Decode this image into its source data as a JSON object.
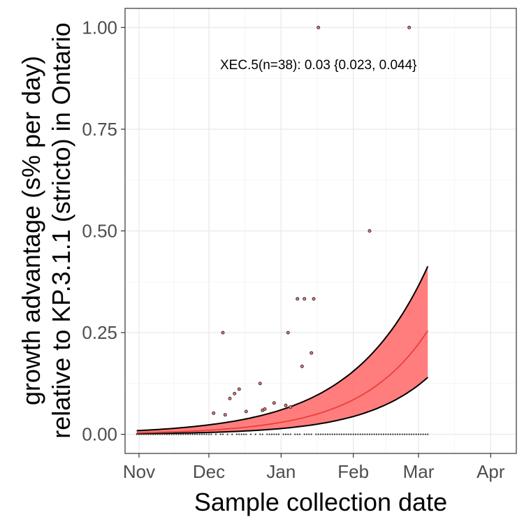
{
  "chart_data": {
    "type": "scatter",
    "title": "",
    "xlabel": "Sample collection date",
    "ylabel_lines": [
      "growth advantage (s% per day)",
      "relative to KP.3.1.1 (stricto) in Ontario"
    ],
    "x_domain": [
      "2024-10-26",
      "2025-04-12"
    ],
    "ylim": [
      -0.047,
      1.047
    ],
    "x_ticks": [
      {
        "label": "Nov",
        "date": "2024-11-01"
      },
      {
        "label": "Dec",
        "date": "2024-12-01"
      },
      {
        "label": "Jan",
        "date": "2025-01-01"
      },
      {
        "label": "Feb",
        "date": "2025-02-01"
      },
      {
        "label": "Mar",
        "date": "2025-03-01"
      },
      {
        "label": "Apr",
        "date": "2025-04-01"
      }
    ],
    "y_ticks": [
      0.0,
      0.25,
      0.5,
      0.75,
      1.0
    ],
    "y_tick_labels": [
      "0.00",
      "0.25",
      "0.50",
      "0.75",
      "1.00"
    ],
    "grid": true,
    "annotation": "XEC.5(n=38): 0.03 {0.023, 0.044}",
    "colors": {
      "fit": "#f8766d",
      "band": "#ff6666",
      "bound": "#000000",
      "point_edge": "#333333",
      "point_fill": "#f8766d"
    },
    "points": [
      {
        "x": "2024-12-03",
        "y": 0.052
      },
      {
        "x": "2024-12-08",
        "y": 0.048
      },
      {
        "x": "2024-12-07",
        "y": 0.25
      },
      {
        "x": "2024-12-10",
        "y": 0.088
      },
      {
        "x": "2024-12-12",
        "y": 0.1
      },
      {
        "x": "2024-12-14",
        "y": 0.111
      },
      {
        "x": "2024-12-17",
        "y": 0.056
      },
      {
        "x": "2024-12-23",
        "y": 0.125
      },
      {
        "x": "2024-12-24",
        "y": 0.059
      },
      {
        "x": "2024-12-25",
        "y": 0.062
      },
      {
        "x": "2024-12-29",
        "y": 0.077
      },
      {
        "x": "2025-01-03",
        "y": 0.071
      },
      {
        "x": "2025-01-04",
        "y": 0.25
      },
      {
        "x": "2025-01-05",
        "y": 0.067
      },
      {
        "x": "2025-01-08",
        "y": 0.333
      },
      {
        "x": "2025-01-10",
        "y": 0.167
      },
      {
        "x": "2025-01-11",
        "y": 0.333
      },
      {
        "x": "2025-01-14",
        "y": 0.2
      },
      {
        "x": "2025-01-15",
        "y": 0.333
      },
      {
        "x": "2025-01-17",
        "y": 1.0
      },
      {
        "x": "2025-02-08",
        "y": 0.5
      },
      {
        "x": "2025-02-25",
        "y": 1.0
      }
    ],
    "zero_points_range": [
      "2024-10-31",
      "2025-03-05"
    ],
    "fit_range": [
      "2024-10-31",
      "2025-03-05"
    ],
    "fit": {
      "start": 0.0035,
      "end": 0.255
    },
    "upper_bound": {
      "start": 0.009,
      "end": 0.413
    },
    "lower_bound": {
      "start": 0.0015,
      "end": 0.14
    }
  }
}
